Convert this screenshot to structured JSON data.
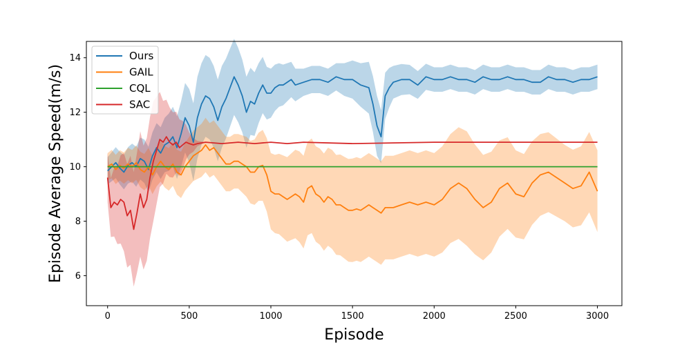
{
  "chart_data": {
    "type": "line",
    "title": "",
    "xlabel": "Episode",
    "ylabel": "Episode Average Speed(m/s)",
    "xlim": [
      -130,
      3150
    ],
    "ylim": [
      4.9,
      14.6
    ],
    "xticks": [
      0,
      500,
      1000,
      1500,
      2000,
      2500,
      3000
    ],
    "yticks": [
      6,
      8,
      10,
      12,
      14
    ],
    "grid": false,
    "legend_position": "top-left",
    "series": [
      {
        "name": "Ours",
        "color": "#1f77b4",
        "band_color": "#1f77b4",
        "points": [
          [
            0,
            9.85
          ],
          [
            25,
            10.0
          ],
          [
            50,
            10.15
          ],
          [
            75,
            9.95
          ],
          [
            100,
            9.8
          ],
          [
            125,
            10.05
          ],
          [
            150,
            10.15
          ],
          [
            175,
            10.0
          ],
          [
            200,
            10.3
          ],
          [
            225,
            10.2
          ],
          [
            250,
            9.9
          ],
          [
            275,
            10.4
          ],
          [
            300,
            10.7
          ],
          [
            325,
            10.5
          ],
          [
            350,
            10.8
          ],
          [
            375,
            10.9
          ],
          [
            400,
            11.1
          ],
          [
            425,
            10.7
          ],
          [
            450,
            11.2
          ],
          [
            475,
            11.8
          ],
          [
            500,
            11.5
          ],
          [
            525,
            10.9
          ],
          [
            550,
            11.8
          ],
          [
            575,
            12.3
          ],
          [
            600,
            12.6
          ],
          [
            625,
            12.5
          ],
          [
            650,
            12.2
          ],
          [
            675,
            11.7
          ],
          [
            700,
            12.2
          ],
          [
            725,
            12.5
          ],
          [
            750,
            12.9
          ],
          [
            775,
            13.3
          ],
          [
            800,
            13.0
          ],
          [
            825,
            12.6
          ],
          [
            850,
            12.0
          ],
          [
            875,
            12.4
          ],
          [
            900,
            12.3
          ],
          [
            925,
            12.7
          ],
          [
            950,
            13.0
          ],
          [
            975,
            12.7
          ],
          [
            1000,
            12.7
          ],
          [
            1025,
            12.9
          ],
          [
            1050,
            13.0
          ],
          [
            1075,
            13.0
          ],
          [
            1100,
            13.1
          ],
          [
            1125,
            13.2
          ],
          [
            1150,
            13.0
          ],
          [
            1200,
            13.1
          ],
          [
            1250,
            13.2
          ],
          [
            1300,
            13.2
          ],
          [
            1350,
            13.1
          ],
          [
            1400,
            13.3
          ],
          [
            1450,
            13.2
          ],
          [
            1500,
            13.2
          ],
          [
            1550,
            13.0
          ],
          [
            1600,
            12.9
          ],
          [
            1625,
            12.3
          ],
          [
            1650,
            11.5
          ],
          [
            1675,
            11.1
          ],
          [
            1700,
            12.6
          ],
          [
            1725,
            12.9
          ],
          [
            1750,
            13.1
          ],
          [
            1800,
            13.2
          ],
          [
            1850,
            13.2
          ],
          [
            1900,
            13.0
          ],
          [
            1950,
            13.3
          ],
          [
            2000,
            13.2
          ],
          [
            2050,
            13.2
          ],
          [
            2100,
            13.3
          ],
          [
            2150,
            13.2
          ],
          [
            2200,
            13.2
          ],
          [
            2250,
            13.1
          ],
          [
            2300,
            13.3
          ],
          [
            2350,
            13.2
          ],
          [
            2400,
            13.2
          ],
          [
            2450,
            13.3
          ],
          [
            2500,
            13.2
          ],
          [
            2550,
            13.2
          ],
          [
            2600,
            13.1
          ],
          [
            2650,
            13.1
          ],
          [
            2700,
            13.3
          ],
          [
            2750,
            13.2
          ],
          [
            2800,
            13.2
          ],
          [
            2850,
            13.1
          ],
          [
            2900,
            13.2
          ],
          [
            2950,
            13.2
          ],
          [
            3000,
            13.3
          ]
        ],
        "band_width": [
          [
            0,
            0.5
          ],
          [
            300,
            0.9
          ],
          [
            450,
            1.2
          ],
          [
            550,
            1.5
          ],
          [
            700,
            1.5
          ],
          [
            850,
            1.3
          ],
          [
            1000,
            0.9
          ],
          [
            1200,
            0.5
          ],
          [
            1400,
            0.5
          ],
          [
            1550,
            0.8
          ],
          [
            1650,
            1.1
          ],
          [
            1750,
            0.6
          ],
          [
            2000,
            0.45
          ],
          [
            3000,
            0.45
          ]
        ]
      },
      {
        "name": "GAIL",
        "color": "#ff7f0e",
        "band_color": "#ff7f0e",
        "points": [
          [
            0,
            10.0
          ],
          [
            25,
            10.1
          ],
          [
            50,
            9.9
          ],
          [
            75,
            10.05
          ],
          [
            100,
            9.95
          ],
          [
            125,
            10.1
          ],
          [
            150,
            10.0
          ],
          [
            175,
            10.15
          ],
          [
            200,
            9.9
          ],
          [
            225,
            9.8
          ],
          [
            250,
            10.0
          ],
          [
            275,
            9.7
          ],
          [
            300,
            10.0
          ],
          [
            325,
            10.2
          ],
          [
            350,
            10.0
          ],
          [
            375,
            9.9
          ],
          [
            400,
            10.1
          ],
          [
            425,
            9.8
          ],
          [
            450,
            9.7
          ],
          [
            475,
            10.0
          ],
          [
            500,
            10.2
          ],
          [
            525,
            10.4
          ],
          [
            550,
            10.5
          ],
          [
            575,
            10.6
          ],
          [
            600,
            10.8
          ],
          [
            625,
            10.6
          ],
          [
            650,
            10.7
          ],
          [
            675,
            10.5
          ],
          [
            700,
            10.3
          ],
          [
            725,
            10.1
          ],
          [
            750,
            10.1
          ],
          [
            775,
            10.2
          ],
          [
            800,
            10.2
          ],
          [
            825,
            10.1
          ],
          [
            850,
            10.0
          ],
          [
            875,
            9.8
          ],
          [
            900,
            9.8
          ],
          [
            925,
            10.0
          ],
          [
            950,
            10.05
          ],
          [
            975,
            9.7
          ],
          [
            1000,
            9.1
          ],
          [
            1025,
            9.0
          ],
          [
            1050,
            9.0
          ],
          [
            1075,
            8.9
          ],
          [
            1100,
            8.8
          ],
          [
            1125,
            8.9
          ],
          [
            1150,
            9.0
          ],
          [
            1175,
            8.9
          ],
          [
            1200,
            8.7
          ],
          [
            1225,
            9.2
          ],
          [
            1250,
            9.3
          ],
          [
            1275,
            9.0
          ],
          [
            1300,
            8.9
          ],
          [
            1325,
            8.7
          ],
          [
            1350,
            8.9
          ],
          [
            1375,
            8.8
          ],
          [
            1400,
            8.6
          ],
          [
            1425,
            8.6
          ],
          [
            1450,
            8.5
          ],
          [
            1475,
            8.4
          ],
          [
            1500,
            8.4
          ],
          [
            1525,
            8.45
          ],
          [
            1550,
            8.4
          ],
          [
            1575,
            8.5
          ],
          [
            1600,
            8.6
          ],
          [
            1625,
            8.5
          ],
          [
            1650,
            8.4
          ],
          [
            1675,
            8.3
          ],
          [
            1700,
            8.5
          ],
          [
            1750,
            8.5
          ],
          [
            1800,
            8.6
          ],
          [
            1850,
            8.7
          ],
          [
            1900,
            8.6
          ],
          [
            1950,
            8.7
          ],
          [
            2000,
            8.6
          ],
          [
            2050,
            8.8
          ],
          [
            2100,
            9.2
          ],
          [
            2150,
            9.4
          ],
          [
            2200,
            9.2
          ],
          [
            2250,
            8.8
          ],
          [
            2300,
            8.5
          ],
          [
            2350,
            8.7
          ],
          [
            2400,
            9.2
          ],
          [
            2450,
            9.4
          ],
          [
            2500,
            9.0
          ],
          [
            2550,
            8.9
          ],
          [
            2600,
            9.4
          ],
          [
            2650,
            9.7
          ],
          [
            2700,
            9.8
          ],
          [
            2750,
            9.6
          ],
          [
            2800,
            9.4
          ],
          [
            2850,
            9.2
          ],
          [
            2900,
            9.3
          ],
          [
            2950,
            9.8
          ],
          [
            3000,
            9.1
          ]
        ],
        "band_width": [
          [
            0,
            0.5
          ],
          [
            400,
            0.8
          ],
          [
            600,
            1.0
          ],
          [
            800,
            1.0
          ],
          [
            1000,
            1.4
          ],
          [
            1200,
            1.7
          ],
          [
            1500,
            1.9
          ],
          [
            2000,
            1.9
          ],
          [
            2200,
            2.1
          ],
          [
            2500,
            1.6
          ],
          [
            2800,
            1.4
          ],
          [
            3000,
            1.5
          ]
        ]
      },
      {
        "name": "CQL",
        "color": "#2ca02c",
        "band_color": "#2ca02c",
        "points": [
          [
            0,
            10.0
          ],
          [
            3000,
            10.0
          ]
        ],
        "band_width": [
          [
            0,
            0.0
          ],
          [
            3000,
            0.0
          ]
        ]
      },
      {
        "name": "SAC",
        "color": "#d62728",
        "band_color": "#d62728",
        "points": [
          [
            0,
            9.6
          ],
          [
            20,
            8.5
          ],
          [
            40,
            8.7
          ],
          [
            60,
            8.6
          ],
          [
            80,
            8.8
          ],
          [
            100,
            8.7
          ],
          [
            120,
            8.2
          ],
          [
            140,
            8.4
          ],
          [
            160,
            7.7
          ],
          [
            180,
            8.3
          ],
          [
            200,
            9.0
          ],
          [
            220,
            8.5
          ],
          [
            240,
            8.8
          ],
          [
            260,
            9.6
          ],
          [
            280,
            10.2
          ],
          [
            300,
            10.6
          ],
          [
            320,
            11.0
          ],
          [
            340,
            10.9
          ],
          [
            360,
            11.1
          ],
          [
            380,
            10.9
          ],
          [
            400,
            10.8
          ],
          [
            420,
            10.9
          ],
          [
            440,
            10.7
          ],
          [
            460,
            10.8
          ],
          [
            480,
            10.9
          ],
          [
            500,
            10.85
          ],
          [
            525,
            10.8
          ],
          [
            550,
            10.85
          ],
          [
            600,
            10.9
          ],
          [
            700,
            10.85
          ],
          [
            800,
            10.9
          ],
          [
            900,
            10.85
          ],
          [
            1000,
            10.9
          ],
          [
            1100,
            10.85
          ],
          [
            1200,
            10.9
          ],
          [
            1500,
            10.85
          ],
          [
            2000,
            10.9
          ],
          [
            2500,
            10.9
          ],
          [
            3000,
            10.9
          ]
        ],
        "band_width": [
          [
            0,
            0.9
          ],
          [
            100,
            1.8
          ],
          [
            200,
            2.3
          ],
          [
            280,
            2.2
          ],
          [
            350,
            1.4
          ],
          [
            450,
            1.0
          ],
          [
            500,
            0.4
          ],
          [
            550,
            0.1
          ],
          [
            600,
            0.0
          ],
          [
            3000,
            0.0
          ]
        ]
      }
    ]
  }
}
